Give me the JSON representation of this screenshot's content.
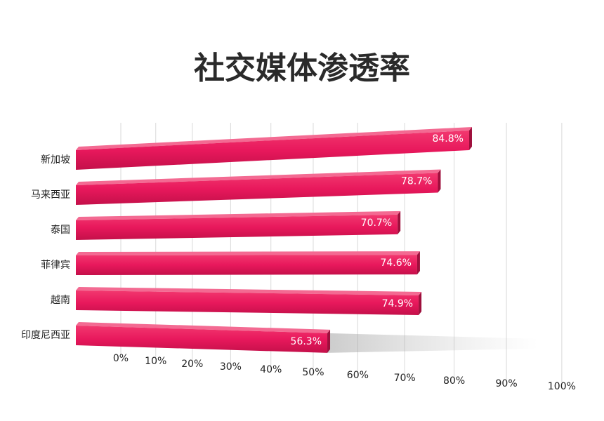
{
  "chart_data": {
    "type": "bar",
    "orientation": "horizontal",
    "title": "社交媒体渗透率",
    "categories": [
      "新加坡",
      "马来西亚",
      "泰国",
      "菲律宾",
      "越南",
      "印度尼西亚"
    ],
    "values": [
      84.8,
      78.7,
      70.7,
      74.6,
      74.9,
      56.3
    ],
    "value_labels": [
      "84.8%",
      "78.7%",
      "70.7%",
      "74.6%",
      "74.9%",
      "56.3%"
    ],
    "color": "#e8185c",
    "xlim": [
      0,
      100
    ],
    "xticks": [
      {
        "value": 0,
        "label": "0%"
      },
      {
        "value": 10,
        "label": "10%"
      },
      {
        "value": 20,
        "label": "20%"
      },
      {
        "value": 30,
        "label": "30%"
      },
      {
        "value": 40,
        "label": "40%"
      },
      {
        "value": 50,
        "label": "50%"
      },
      {
        "value": 60,
        "label": "60%"
      },
      {
        "value": 70,
        "label": "70%"
      },
      {
        "value": 80,
        "label": "80%"
      },
      {
        "value": 90,
        "label": "90%"
      },
      {
        "value": 100,
        "label": "100%"
      }
    ],
    "grid": true
  }
}
